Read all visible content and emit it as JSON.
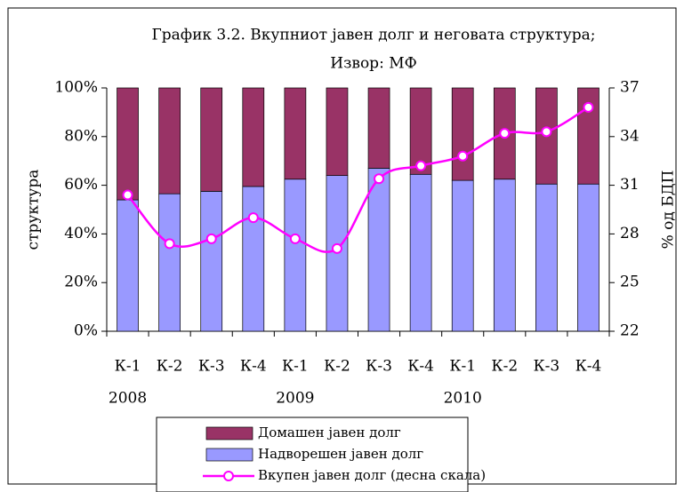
{
  "chart_data": {
    "type": "bar_line",
    "title": "График 3.2. Вкупниот јавен долг и неговата структура;",
    "subtitle": "Извор: МФ",
    "ylabel": "структура",
    "y2label": "% од БДП",
    "categories": [
      "К-1",
      "К-2",
      "К-3",
      "К-4",
      "К-1",
      "К-2",
      "К-3",
      "К-4",
      "К-1",
      "К-2",
      "К-3",
      "К-4"
    ],
    "groups": [
      "2008",
      "2009",
      "2010"
    ],
    "series": [
      {
        "name": "Домашен јавен долг",
        "color": "#993366",
        "values": [
          46,
          43.5,
          42.5,
          40.5,
          37.5,
          36,
          33,
          35.5,
          38,
          37.5,
          39.5,
          39.5
        ]
      },
      {
        "name": "Надворешен јавен долг",
        "color": "#9999ff",
        "values": [
          54,
          56.5,
          57.5,
          59.5,
          62.5,
          64,
          67,
          64.5,
          62,
          62.5,
          60.5,
          60.5
        ]
      },
      {
        "name": "Вкупен јавен долг (десна скала)",
        "color": "#ff00ff",
        "axis": "y2",
        "values": [
          30.4,
          27.4,
          27.7,
          29.0,
          27.7,
          27.1,
          31.4,
          32.2,
          32.8,
          34.2,
          34.3,
          35.8
        ]
      }
    ],
    "ylim": [
      0,
      100
    ],
    "yticks": [
      {
        "value": 0,
        "label": "0%"
      },
      {
        "value": 20,
        "label": "20%"
      },
      {
        "value": 40,
        "label": "40%"
      },
      {
        "value": 60,
        "label": "60%"
      },
      {
        "value": 80,
        "label": "80%"
      },
      {
        "value": 100,
        "label": "100%"
      }
    ],
    "y2lim": [
      22,
      37
    ],
    "y2ticks": [
      22,
      25,
      28,
      31,
      34,
      37
    ]
  }
}
